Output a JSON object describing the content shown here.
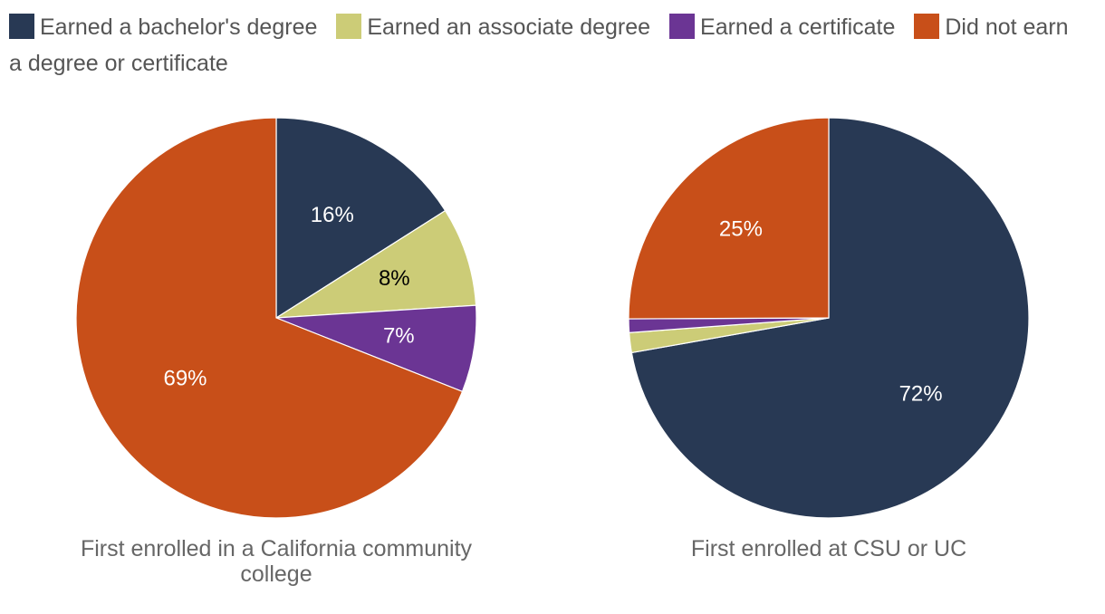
{
  "legend": [
    {
      "label": "Earned a bachelor's degree",
      "color": "#283954"
    },
    {
      "label": "Earned an associate degree",
      "color": "#cccc77"
    },
    {
      "label": "Earned a certificate",
      "color": "#6b3594"
    },
    {
      "label": "Did not earn a degree or certificate",
      "color": "#c84f19"
    }
  ],
  "chart_data": [
    {
      "type": "pie",
      "title": "First enrolled in a California community college",
      "categories": [
        "Earned a bachelor's degree",
        "Earned an associate degree",
        "Earned a certificate",
        "Did not earn a degree or certificate"
      ],
      "values": [
        16,
        8,
        7,
        69
      ],
      "labels": [
        "16%",
        "8%",
        "7%",
        "69%"
      ],
      "label_colors": [
        "#ffffff",
        "#000000",
        "#ffffff",
        "#ffffff"
      ],
      "colors": [
        "#283954",
        "#cccc77",
        "#6b3594",
        "#c84f19"
      ]
    },
    {
      "type": "pie",
      "title": "First enrolled at CSU or UC",
      "categories": [
        "Earned a bachelor's degree",
        "Earned an associate degree",
        "Earned a certificate",
        "Did not earn a degree or certificate"
      ],
      "values": [
        72,
        1.6,
        1.1,
        25
      ],
      "labels": [
        "72%",
        "",
        "",
        "25%"
      ],
      "label_colors": [
        "#ffffff",
        "#000000",
        "#ffffff",
        "#ffffff"
      ],
      "colors": [
        "#283954",
        "#cccc77",
        "#6b3594",
        "#c84f19"
      ]
    }
  ]
}
